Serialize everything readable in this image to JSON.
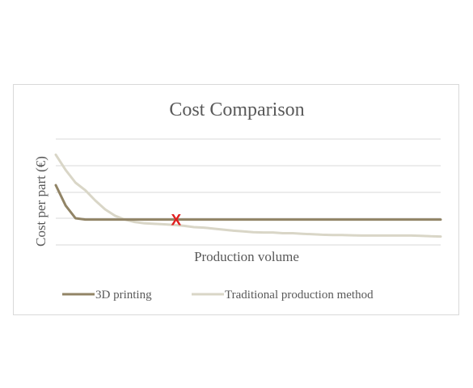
{
  "chart_data": {
    "type": "line",
    "title": "Cost Comparison",
    "xlabel": "Production volume",
    "ylabel": "Cost per part (€)",
    "x": [
      0,
      1,
      2,
      3,
      4,
      5,
      6,
      7,
      8,
      9,
      10,
      11,
      12,
      13,
      14,
      15,
      16,
      17,
      18,
      19,
      20,
      21,
      22,
      23,
      24,
      25,
      26,
      27,
      28,
      29,
      30,
      31,
      32,
      33,
      34,
      35,
      36,
      37,
      38,
      39
    ],
    "ylim": [
      0,
      4.2
    ],
    "grid": true,
    "legend_position": "bottom",
    "series": [
      {
        "name": "3D printing",
        "color": "#918466",
        "values": [
          2.35,
          1.55,
          1.05,
          1.0,
          1.0,
          1.0,
          1.0,
          1.0,
          1.0,
          1.0,
          1.0,
          1.0,
          1.0,
          1.0,
          1.0,
          1.0,
          1.0,
          1.0,
          1.0,
          1.0,
          1.0,
          1.0,
          1.0,
          1.0,
          1.0,
          1.0,
          1.0,
          1.0,
          1.0,
          1.0,
          1.0,
          1.0,
          1.0,
          1.0,
          1.0,
          1.0,
          1.0,
          1.0,
          1.0,
          1.0
        ]
      },
      {
        "name": "Traditional production method",
        "color": "#d9d6c7",
        "values": [
          3.55,
          2.95,
          2.45,
          2.15,
          1.75,
          1.4,
          1.15,
          1.0,
          0.9,
          0.85,
          0.83,
          0.81,
          0.79,
          0.75,
          0.7,
          0.68,
          0.64,
          0.6,
          0.56,
          0.53,
          0.5,
          0.49,
          0.49,
          0.46,
          0.46,
          0.44,
          0.42,
          0.4,
          0.39,
          0.39,
          0.38,
          0.37,
          0.37,
          0.37,
          0.37,
          0.37,
          0.37,
          0.36,
          0.34,
          0.33
        ]
      }
    ],
    "annotation": {
      "text": "X",
      "color": "#e02020",
      "x": 12.2,
      "y": 1.0
    }
  }
}
